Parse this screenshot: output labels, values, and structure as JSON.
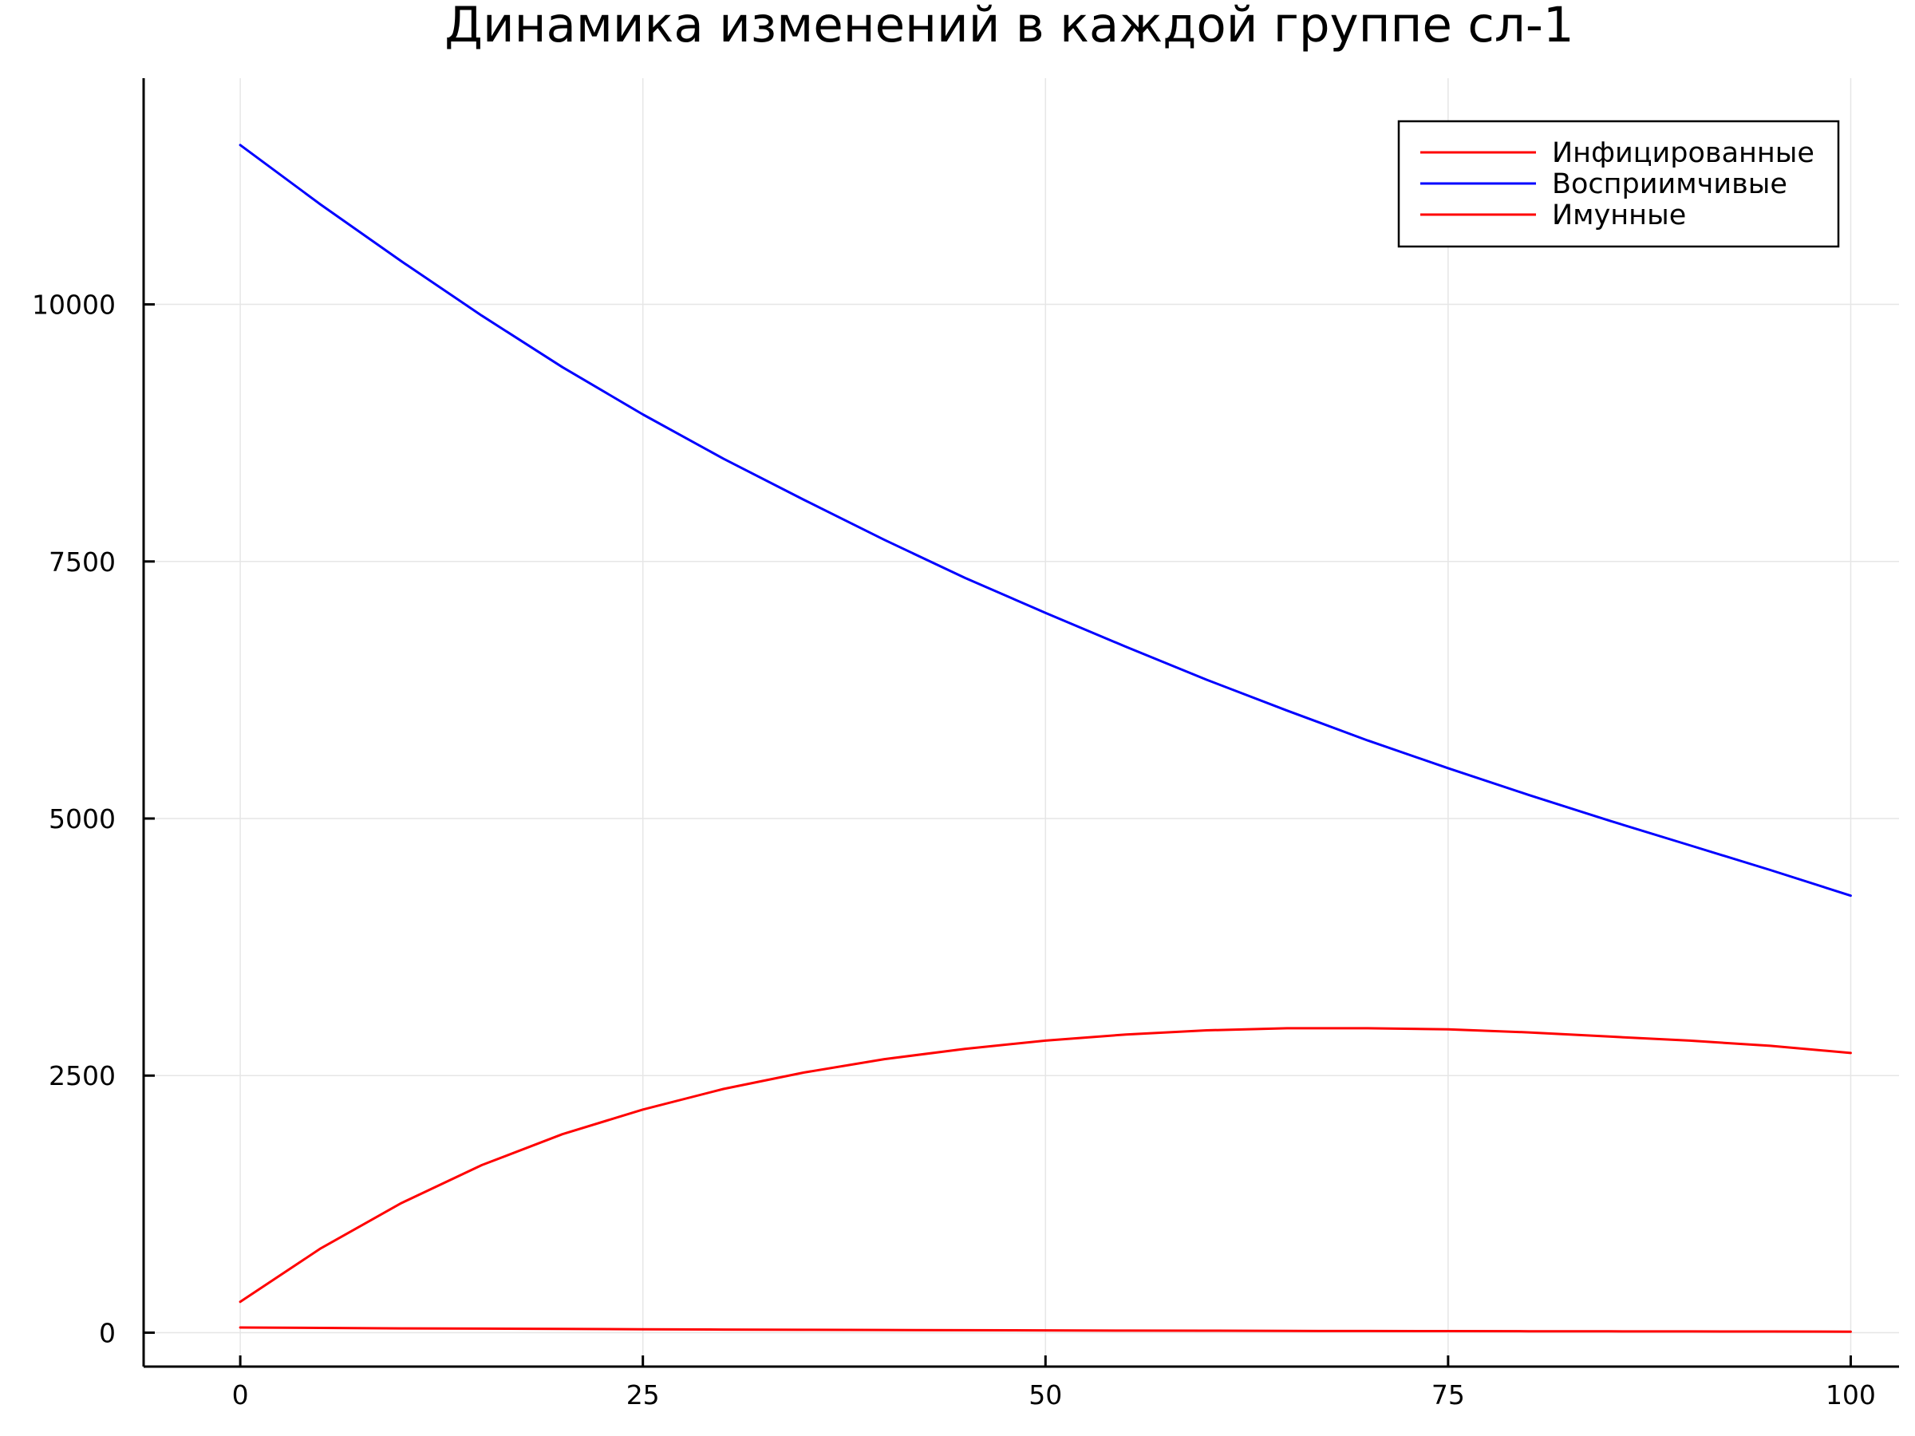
{
  "chart_data": {
    "type": "line",
    "title": "Динамика изменений в каждой группе сл-1",
    "xlabel": "",
    "ylabel": "",
    "xlim": [
      -6,
      103
    ],
    "ylim": [
      -330,
      12200
    ],
    "xticks": [
      0,
      25,
      50,
      75,
      100
    ],
    "xtick_labels": [
      "0",
      "25",
      "50",
      "75",
      "100"
    ],
    "yticks": [
      0,
      2500,
      5000,
      7500,
      10000
    ],
    "ytick_labels": [
      "0",
      "2500",
      "5000",
      "7500",
      "10000"
    ],
    "grid": true,
    "legend_position": "top-right",
    "x": [
      0,
      5,
      10,
      15,
      20,
      25,
      30,
      35,
      40,
      45,
      50,
      55,
      60,
      65,
      70,
      75,
      80,
      85,
      90,
      95,
      100
    ],
    "series": [
      {
        "name": "Инфицированные",
        "color": "#ff0000",
        "values": [
          300,
          820,
          1260,
          1630,
          1930,
          2170,
          2370,
          2530,
          2660,
          2760,
          2840,
          2900,
          2940,
          2960,
          2960,
          2950,
          2920,
          2880,
          2840,
          2790,
          2720
        ]
      },
      {
        "name": "Восприимчивые",
        "color": "#0000ff",
        "values": [
          11550,
          10970,
          10420,
          9890,
          9390,
          8930,
          8500,
          8100,
          7710,
          7340,
          7000,
          6670,
          6350,
          6050,
          5760,
          5490,
          5230,
          4980,
          4740,
          4500,
          4250
        ]
      },
      {
        "name": "Имунные",
        "color": "#ff0000",
        "values": [
          50,
          46,
          42,
          39,
          36,
          33,
          30,
          28,
          26,
          24,
          22,
          20,
          19,
          17,
          16,
          15,
          14,
          13,
          12,
          11,
          10
        ]
      }
    ]
  }
}
